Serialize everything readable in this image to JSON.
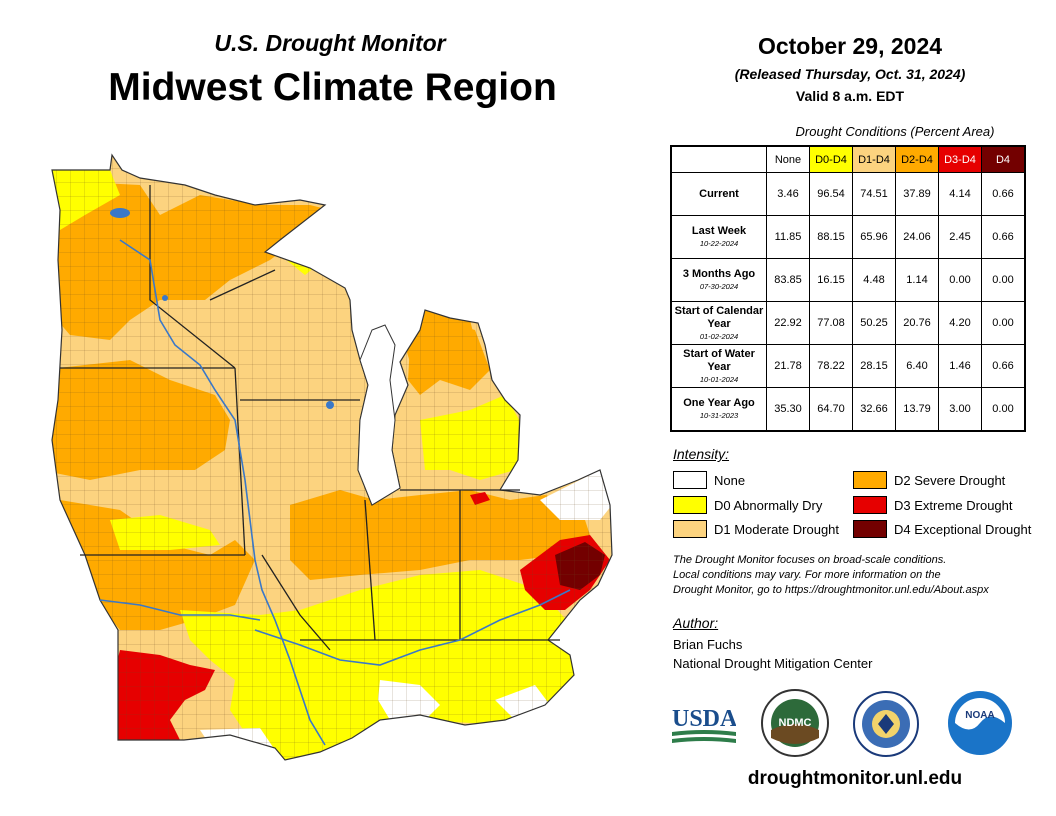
{
  "header": {
    "subtitle": "U.S. Drought Monitor",
    "title": "Midwest Climate Region",
    "date": "October 29, 2024",
    "released": "(Released Thursday, Oct. 31, 2024)",
    "valid": "Valid 8 a.m. EDT"
  },
  "table": {
    "caption": "Drought Conditions (Percent Area)",
    "columns": [
      "None",
      "D0-D4",
      "D1-D4",
      "D2-D4",
      "D3-D4",
      "D4"
    ],
    "rows": [
      {
        "label": "Current",
        "sub": "",
        "values": [
          "3.46",
          "96.54",
          "74.51",
          "37.89",
          "4.14",
          "0.66"
        ]
      },
      {
        "label": "Last Week",
        "sub": "10-22-2024",
        "values": [
          "11.85",
          "88.15",
          "65.96",
          "24.06",
          "2.45",
          "0.66"
        ]
      },
      {
        "label": "3 Months Ago",
        "sub": "07-30-2024",
        "values": [
          "83.85",
          "16.15",
          "4.48",
          "1.14",
          "0.00",
          "0.00"
        ]
      },
      {
        "label": "Start of Calendar Year",
        "sub": "01-02-2024",
        "values": [
          "22.92",
          "77.08",
          "50.25",
          "20.76",
          "4.20",
          "0.00"
        ]
      },
      {
        "label": "Start of Water Year",
        "sub": "10-01-2024",
        "values": [
          "21.78",
          "78.22",
          "28.15",
          "6.40",
          "1.46",
          "0.66"
        ]
      },
      {
        "label": "One Year Ago",
        "sub": "10-31-2023",
        "values": [
          "35.30",
          "64.70",
          "32.66",
          "13.79",
          "3.00",
          "0.00"
        ]
      }
    ]
  },
  "legend": {
    "title": "Intensity:",
    "items": [
      {
        "label": "None",
        "color": "#ffffff"
      },
      {
        "label": "D0 Abnormally Dry",
        "color": "#ffff00"
      },
      {
        "label": "D1 Moderate Drought",
        "color": "#fcd37f"
      },
      {
        "label": "D2 Severe Drought",
        "color": "#ffaa00"
      },
      {
        "label": "D3 Extreme Drought",
        "color": "#e60000"
      },
      {
        "label": "D4 Exceptional Drought",
        "color": "#730000"
      }
    ]
  },
  "note": {
    "line1": "The Drought Monitor focuses on broad-scale conditions.",
    "line2": "Local conditions may vary. For more information on the",
    "line3": "Drought Monitor, go to https://droughtmonitor.unl.edu/About.aspx"
  },
  "author": {
    "title": "Author:",
    "name": "Brian Fuchs",
    "org": "National Drought Mitigation Center"
  },
  "logos": {
    "usda": "USDA",
    "ndmc": "NDMC",
    "noaa": "NOAA"
  },
  "footer": {
    "url": "droughtmonitor.unl.edu"
  }
}
